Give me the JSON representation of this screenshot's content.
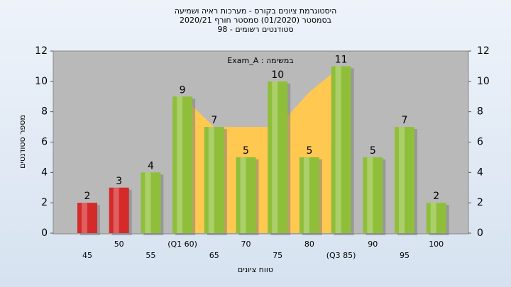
{
  "chart_data": {
    "type": "bar",
    "title": "היסטוגרמת ציונים בקורס - מערכות ראיה ושמיעה",
    "subtitle": "בסמסטר  (01/2020)  סמסטר חורף 2020/21",
    "subtitle2": "סטודנטים רשומים - 98",
    "annotation": "במשימה : Exam_A",
    "xlabel": "טווח ציונים",
    "ylabel": "מספר סטודנטים",
    "categories": [
      "45",
      "50",
      "55",
      "(Q1 60)",
      "65",
      "70",
      "75",
      "80",
      "(Q3 85)",
      "90",
      "95",
      "100"
    ],
    "values": [
      2,
      3,
      4,
      9,
      7,
      5,
      10,
      5,
      11,
      5,
      7,
      2
    ],
    "colors": [
      "#d42a2a",
      "#d42a2a",
      "#8fbf3a",
      "#8fbf3a",
      "#8fbf3a",
      "#8fbf3a",
      "#8fbf3a",
      "#8fbf3a",
      "#8fbf3a",
      "#8fbf3a",
      "#8fbf3a",
      "#8fbf3a"
    ],
    "quartile_area": {
      "color": "#ffc850",
      "values": [
        null,
        null,
        null,
        9,
        7,
        7,
        7,
        9.3,
        11,
        null,
        null,
        null
      ]
    },
    "ylim": [
      0,
      12
    ],
    "yticks": [
      0,
      2,
      4,
      6,
      8,
      10,
      12
    ],
    "y2lim": [
      0,
      12
    ],
    "y2ticks": [
      0,
      2,
      4,
      6,
      8,
      10,
      12
    ]
  }
}
